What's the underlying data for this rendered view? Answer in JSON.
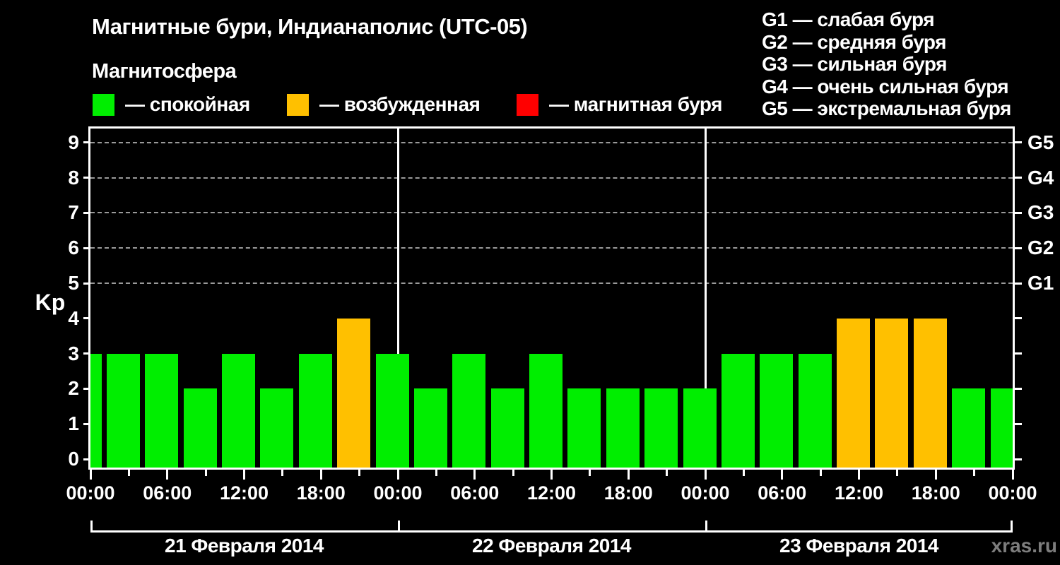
{
  "header": {
    "title": "Магнитные бури, Индианаполис (UTC-05)",
    "subtitle": "Магнитосфера",
    "legend": [
      {
        "label": "— спокойная",
        "color": "#00ee00"
      },
      {
        "label": "— возбужденная",
        "color": "#ffc000"
      },
      {
        "label": "— магнитная буря",
        "color": "#ff0000"
      }
    ],
    "g_scale": [
      {
        "text": "G1 — слабая буря"
      },
      {
        "text": "G2 — средняя буря"
      },
      {
        "text": "G3 — сильная буря"
      },
      {
        "text": "G4 — очень сильная буря"
      },
      {
        "text": "G5 — экстремальная буря"
      }
    ]
  },
  "watermark": "xras.ru",
  "chart_data": {
    "type": "bar",
    "title": "Магнитные бури, Индианаполис (UTC-05)",
    "ylabel": "Kp",
    "ylim": [
      0,
      9
    ],
    "yticks": [
      0,
      1,
      2,
      3,
      4,
      5,
      6,
      7,
      8,
      9
    ],
    "gridlines_at_kp": [
      5,
      6,
      7,
      8,
      9
    ],
    "grid_style": "dashed-gray-horizontal",
    "right_axis_labels": [
      {
        "label": "G1",
        "kp": 5
      },
      {
        "label": "G2",
        "kp": 6
      },
      {
        "label": "G3",
        "kp": 7
      },
      {
        "label": "G4",
        "kp": 8
      },
      {
        "label": "G5",
        "kp": 9
      }
    ],
    "x_tick_labels": [
      "00:00",
      "06:00",
      "12:00",
      "18:00",
      "00:00",
      "06:00",
      "12:00",
      "18:00",
      "00:00",
      "06:00",
      "12:00",
      "18:00",
      "00:00"
    ],
    "bar_interval_hours": 3,
    "total_hours": 72,
    "days": [
      {
        "date": "21 Февраля 2014",
        "kp_values": [
          3,
          3,
          3,
          2,
          3,
          2,
          3,
          4
        ]
      },
      {
        "date": "22 Февраля 2014",
        "kp_values": [
          3,
          2,
          3,
          2,
          3,
          2,
          2,
          2
        ]
      },
      {
        "date": "23 Февраля 2014",
        "kp_values": [
          2,
          3,
          3,
          3,
          4,
          4,
          4,
          2
        ]
      }
    ],
    "trailing_kp_value": 2,
    "bar_colors": {
      "quiet_kp_under_4": "#00ee00",
      "excited_kp_4": "#ffc000",
      "storm_kp_5_plus": "#ff0000"
    }
  }
}
